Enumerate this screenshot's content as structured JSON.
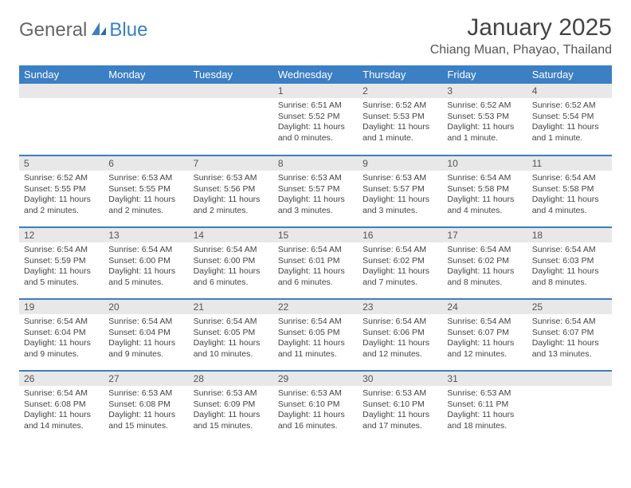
{
  "logo": {
    "text1": "General",
    "text2": "Blue"
  },
  "title": "January 2025",
  "location": "Chiang Muan, Phayao, Thailand",
  "colors": {
    "header_bg": "#3b7fc4",
    "header_fg": "#ffffff",
    "daynum_bg": "#e8e8e8",
    "border": "#3b7fc4",
    "text": "#444444"
  },
  "weekdays": [
    "Sunday",
    "Monday",
    "Tuesday",
    "Wednesday",
    "Thursday",
    "Friday",
    "Saturday"
  ],
  "weeks": [
    [
      null,
      null,
      null,
      {
        "d": "1",
        "sr": "6:51 AM",
        "ss": "5:52 PM",
        "dl": "11 hours and 0 minutes."
      },
      {
        "d": "2",
        "sr": "6:52 AM",
        "ss": "5:53 PM",
        "dl": "11 hours and 1 minute."
      },
      {
        "d": "3",
        "sr": "6:52 AM",
        "ss": "5:53 PM",
        "dl": "11 hours and 1 minute."
      },
      {
        "d": "4",
        "sr": "6:52 AM",
        "ss": "5:54 PM",
        "dl": "11 hours and 1 minute."
      }
    ],
    [
      {
        "d": "5",
        "sr": "6:52 AM",
        "ss": "5:55 PM",
        "dl": "11 hours and 2 minutes."
      },
      {
        "d": "6",
        "sr": "6:53 AM",
        "ss": "5:55 PM",
        "dl": "11 hours and 2 minutes."
      },
      {
        "d": "7",
        "sr": "6:53 AM",
        "ss": "5:56 PM",
        "dl": "11 hours and 2 minutes."
      },
      {
        "d": "8",
        "sr": "6:53 AM",
        "ss": "5:57 PM",
        "dl": "11 hours and 3 minutes."
      },
      {
        "d": "9",
        "sr": "6:53 AM",
        "ss": "5:57 PM",
        "dl": "11 hours and 3 minutes."
      },
      {
        "d": "10",
        "sr": "6:54 AM",
        "ss": "5:58 PM",
        "dl": "11 hours and 4 minutes."
      },
      {
        "d": "11",
        "sr": "6:54 AM",
        "ss": "5:58 PM",
        "dl": "11 hours and 4 minutes."
      }
    ],
    [
      {
        "d": "12",
        "sr": "6:54 AM",
        "ss": "5:59 PM",
        "dl": "11 hours and 5 minutes."
      },
      {
        "d": "13",
        "sr": "6:54 AM",
        "ss": "6:00 PM",
        "dl": "11 hours and 5 minutes."
      },
      {
        "d": "14",
        "sr": "6:54 AM",
        "ss": "6:00 PM",
        "dl": "11 hours and 6 minutes."
      },
      {
        "d": "15",
        "sr": "6:54 AM",
        "ss": "6:01 PM",
        "dl": "11 hours and 6 minutes."
      },
      {
        "d": "16",
        "sr": "6:54 AM",
        "ss": "6:02 PM",
        "dl": "11 hours and 7 minutes."
      },
      {
        "d": "17",
        "sr": "6:54 AM",
        "ss": "6:02 PM",
        "dl": "11 hours and 8 minutes."
      },
      {
        "d": "18",
        "sr": "6:54 AM",
        "ss": "6:03 PM",
        "dl": "11 hours and 8 minutes."
      }
    ],
    [
      {
        "d": "19",
        "sr": "6:54 AM",
        "ss": "6:04 PM",
        "dl": "11 hours and 9 minutes."
      },
      {
        "d": "20",
        "sr": "6:54 AM",
        "ss": "6:04 PM",
        "dl": "11 hours and 9 minutes."
      },
      {
        "d": "21",
        "sr": "6:54 AM",
        "ss": "6:05 PM",
        "dl": "11 hours and 10 minutes."
      },
      {
        "d": "22",
        "sr": "6:54 AM",
        "ss": "6:05 PM",
        "dl": "11 hours and 11 minutes."
      },
      {
        "d": "23",
        "sr": "6:54 AM",
        "ss": "6:06 PM",
        "dl": "11 hours and 12 minutes."
      },
      {
        "d": "24",
        "sr": "6:54 AM",
        "ss": "6:07 PM",
        "dl": "11 hours and 12 minutes."
      },
      {
        "d": "25",
        "sr": "6:54 AM",
        "ss": "6:07 PM",
        "dl": "11 hours and 13 minutes."
      }
    ],
    [
      {
        "d": "26",
        "sr": "6:54 AM",
        "ss": "6:08 PM",
        "dl": "11 hours and 14 minutes."
      },
      {
        "d": "27",
        "sr": "6:53 AM",
        "ss": "6:08 PM",
        "dl": "11 hours and 15 minutes."
      },
      {
        "d": "28",
        "sr": "6:53 AM",
        "ss": "6:09 PM",
        "dl": "11 hours and 15 minutes."
      },
      {
        "d": "29",
        "sr": "6:53 AM",
        "ss": "6:10 PM",
        "dl": "11 hours and 16 minutes."
      },
      {
        "d": "30",
        "sr": "6:53 AM",
        "ss": "6:10 PM",
        "dl": "11 hours and 17 minutes."
      },
      {
        "d": "31",
        "sr": "6:53 AM",
        "ss": "6:11 PM",
        "dl": "11 hours and 18 minutes."
      },
      null
    ]
  ],
  "labels": {
    "sunrise": "Sunrise:",
    "sunset": "Sunset:",
    "daylight": "Daylight:"
  }
}
